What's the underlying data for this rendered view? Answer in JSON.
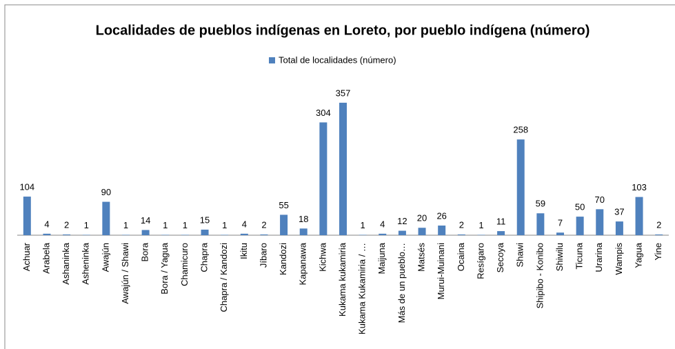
{
  "chart_data": {
    "type": "bar",
    "title": "Localidades de pueblos indígenas en Loreto, por pueblo indígena (número)",
    "categories": [
      "Achuar",
      "Arabela",
      "Ashaninka",
      "Asheninka",
      "Awajún",
      "Awajún / Shawi",
      "Bora",
      "Bora / Yagua",
      "Chamicuro",
      "Chapra",
      "Chapra / Kandozi",
      "Ikitu",
      "Jíbaro",
      "Kandozi",
      "Kapanawa",
      "Kichwa",
      "Kukama kukamiria",
      "Kukama Kukamiria / …",
      "Maijuna",
      "Más de un pueblo…",
      "Matsés",
      "Murui-Muinani",
      "Ocaina",
      "Resígaro",
      "Secoya",
      "Shawi",
      "Shipibo - Konibo",
      "Shiwilu",
      "Ticuna",
      "Urarina",
      "Wampis",
      "Yagua",
      "Yine"
    ],
    "series": [
      {
        "name": "Total de localidades (número)",
        "color": "#4f81bd",
        "values": [
          104,
          4,
          2,
          1,
          90,
          1,
          14,
          1,
          1,
          15,
          1,
          4,
          2,
          55,
          18,
          304,
          357,
          1,
          4,
          12,
          20,
          26,
          2,
          1,
          11,
          258,
          59,
          7,
          50,
          70,
          37,
          103,
          2
        ]
      }
    ],
    "ylim": [
      0,
      400
    ],
    "legend": "top"
  }
}
